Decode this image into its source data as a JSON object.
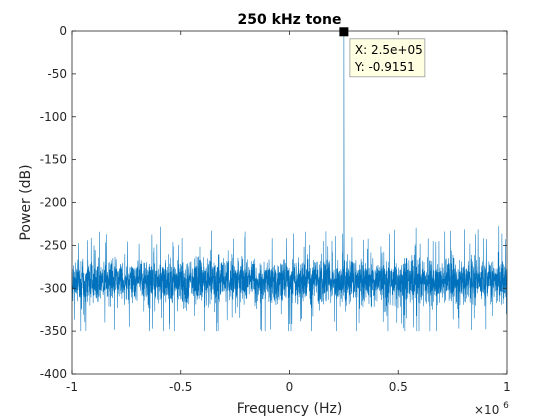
{
  "chart_data": {
    "type": "line",
    "title": "250 kHz tone",
    "xlabel": "Frequency (Hz)",
    "ylabel": "Power (dB)",
    "x_exponent_label": "×10",
    "x_exponent_power": "6",
    "xlim": [
      -1000000,
      1000000
    ],
    "ylim": [
      -400,
      0
    ],
    "x_ticks": [
      -1000000,
      -500000,
      0,
      500000,
      1000000
    ],
    "x_tick_labels": [
      "-1",
      "-0.5",
      "0",
      "0.5",
      "1"
    ],
    "y_ticks": [
      0,
      -50,
      -100,
      -150,
      -200,
      -250,
      -300,
      -350,
      -400
    ],
    "y_tick_labels": [
      "0",
      "-50",
      "-100",
      "-150",
      "-200",
      "-250",
      "-300",
      "-350",
      "-400"
    ],
    "grid": false,
    "series": [
      {
        "color": "#0072BD",
        "noise_floor_db": {
          "center": -292,
          "typical_range": [
            -325,
            -255
          ],
          "extreme_range": [
            -350,
            -225
          ]
        },
        "peak": {
          "x": 250000,
          "y": -0.9151
        }
      }
    ],
    "datatip": {
      "x": 250000,
      "y": -0.9151,
      "x_text": "X: 2.5e+05",
      "y_text": "Y: -0.9151"
    }
  }
}
